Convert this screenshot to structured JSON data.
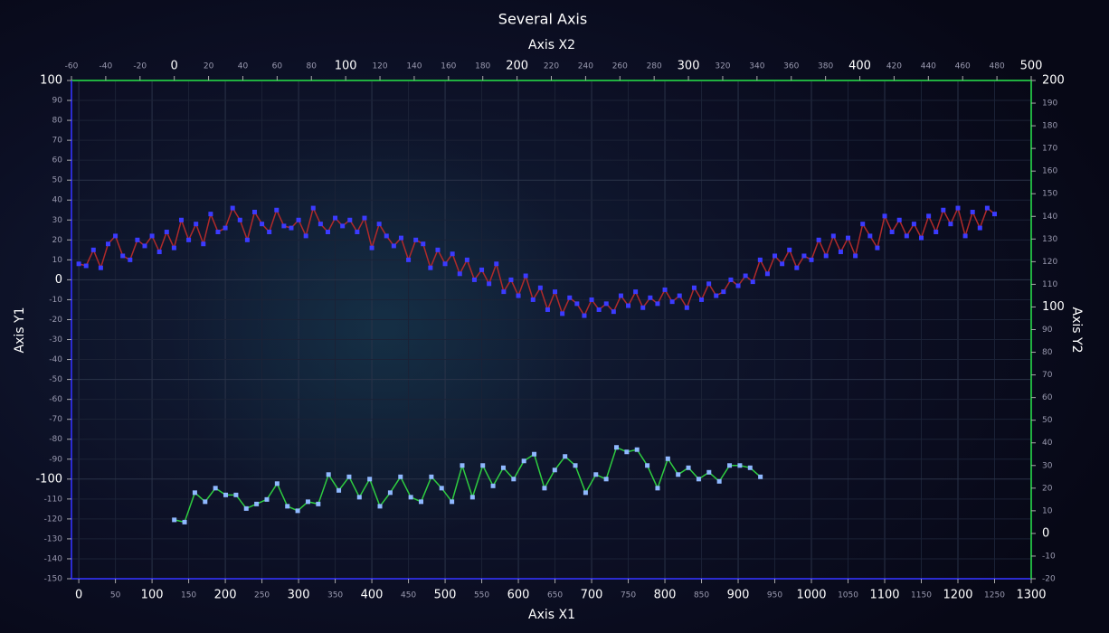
{
  "chart_data": {
    "type": "line",
    "title": "Several Axis",
    "x_label": "Axis X1",
    "x2_label": "Axis X2",
    "y_label": "Axis Y1",
    "y2_label": "Axis Y2",
    "xlim": [
      -10,
      1300
    ],
    "xticks": [
      0,
      50,
      100,
      150,
      200,
      250,
      300,
      350,
      400,
      450,
      500,
      550,
      600,
      650,
      700,
      750,
      800,
      850,
      900,
      950,
      1000,
      1050,
      1100,
      1150,
      1200,
      1250,
      1300
    ],
    "x2lim": [
      -60,
      500
    ],
    "x2ticks": [
      -60,
      -40,
      -20,
      0,
      20,
      40,
      60,
      80,
      100,
      120,
      140,
      160,
      180,
      200,
      220,
      240,
      260,
      280,
      300,
      320,
      340,
      360,
      380,
      400,
      420,
      440,
      460,
      480,
      500
    ],
    "ylim": [
      -150,
      100
    ],
    "yticks": [
      -150,
      -140,
      -130,
      -120,
      -110,
      -100,
      -90,
      -80,
      -70,
      -60,
      -50,
      -40,
      -30,
      -20,
      -10,
      0,
      10,
      20,
      30,
      40,
      50,
      60,
      70,
      80,
      90,
      100
    ],
    "y2lim": [
      -20,
      200
    ],
    "y2ticks": [
      -20,
      -10,
      0,
      10,
      20,
      30,
      40,
      50,
      60,
      70,
      80,
      90,
      100,
      110,
      120,
      130,
      140,
      150,
      160,
      170,
      180,
      190,
      200
    ],
    "grid": true,
    "x_axis_color": "#2b2bd0",
    "y_axis_color": "#2b2bd0",
    "x2_axis_color": "#20b040",
    "y2_axis_color": "#20b040",
    "series": [
      {
        "color": "#b02a2a",
        "marker_color": "#3b3bff",
        "x_axis": "x",
        "axis": "y",
        "x": [
          0,
          10,
          20,
          30,
          40,
          50,
          60,
          70,
          80,
          90,
          100,
          110,
          120,
          130,
          140,
          150,
          160,
          170,
          180,
          190,
          200,
          210,
          220,
          230,
          240,
          250,
          260,
          270,
          280,
          290,
          300,
          310,
          320,
          330,
          340,
          350,
          360,
          370,
          380,
          390,
          400,
          410,
          420,
          430,
          440,
          450,
          460,
          470,
          480,
          490,
          500,
          510,
          520,
          530,
          540,
          550,
          560,
          570,
          580,
          590,
          600,
          610,
          620,
          630,
          640,
          650,
          660,
          670,
          680,
          690,
          700,
          710,
          720,
          730,
          740,
          750,
          760,
          770,
          780,
          790,
          800,
          810,
          820,
          830,
          840,
          850,
          860,
          870,
          880,
          890,
          900,
          910,
          920,
          930,
          940,
          950,
          960,
          970,
          980,
          990,
          1000,
          1010,
          1020,
          1030,
          1040,
          1050,
          1060,
          1070,
          1080,
          1090,
          1100,
          1110,
          1120,
          1130,
          1140,
          1150,
          1160,
          1170,
          1180,
          1190,
          1200,
          1210,
          1220,
          1230,
          1240,
          1250
        ],
        "values": [
          8,
          7,
          15,
          6,
          18,
          22,
          12,
          10,
          20,
          17,
          22,
          14,
          24,
          16,
          30,
          20,
          28,
          18,
          33,
          24,
          26,
          36,
          30,
          20,
          34,
          28,
          24,
          35,
          27,
          26,
          30,
          22,
          36,
          28,
          24,
          31,
          27,
          30,
          24,
          31,
          16,
          28,
          22,
          17,
          21,
          10,
          20,
          18,
          6,
          15,
          8,
          13,
          3,
          10,
          0,
          5,
          -2,
          8,
          -6,
          0,
          -8,
          2,
          -10,
          -4,
          -15,
          -6,
          -17,
          -9,
          -12,
          -18,
          -10,
          -15,
          -12,
          -16,
          -8,
          -13,
          -6,
          -14,
          -9,
          -12,
          -5,
          -11,
          -8,
          -14,
          -4,
          -10,
          -2,
          -8,
          -6,
          0,
          -3,
          2,
          -1,
          10,
          3,
          12,
          8,
          15,
          6,
          12,
          10,
          20,
          12,
          22,
          14,
          21,
          12,
          28,
          22,
          16,
          32,
          24,
          30,
          22,
          28,
          21,
          32,
          24,
          35,
          28,
          36,
          22,
          34,
          26,
          36,
          33
        ]
      },
      {
        "color": "#2ecc40",
        "marker_color": "#8fb8ff",
        "x_axis": "x2",
        "axis": "y2",
        "x": [
          0,
          6,
          12,
          18,
          24,
          30,
          36,
          42,
          48,
          54,
          60,
          66,
          72,
          78,
          84,
          90,
          96,
          102,
          108,
          114,
          120,
          126,
          132,
          138,
          144,
          150,
          156,
          162,
          168,
          174,
          180,
          186,
          192,
          198,
          204,
          210,
          216,
          222,
          228,
          234,
          240,
          246,
          252,
          258,
          264,
          270,
          276,
          282,
          288,
          294,
          300,
          306,
          312,
          318,
          324,
          330,
          336,
          342
        ],
        "values": [
          6,
          5,
          18,
          14,
          20,
          17,
          17,
          11,
          13,
          15,
          22,
          12,
          10,
          14,
          13,
          26,
          19,
          25,
          16,
          24,
          12,
          18,
          25,
          16,
          14,
          25,
          20,
          14,
          30,
          16,
          30,
          21,
          29,
          24,
          32,
          35,
          20,
          28,
          34,
          30,
          18,
          26,
          24,
          38,
          36,
          37,
          30,
          20,
          33,
          26,
          29,
          24,
          27,
          23,
          30,
          30,
          29,
          25
        ]
      }
    ]
  }
}
